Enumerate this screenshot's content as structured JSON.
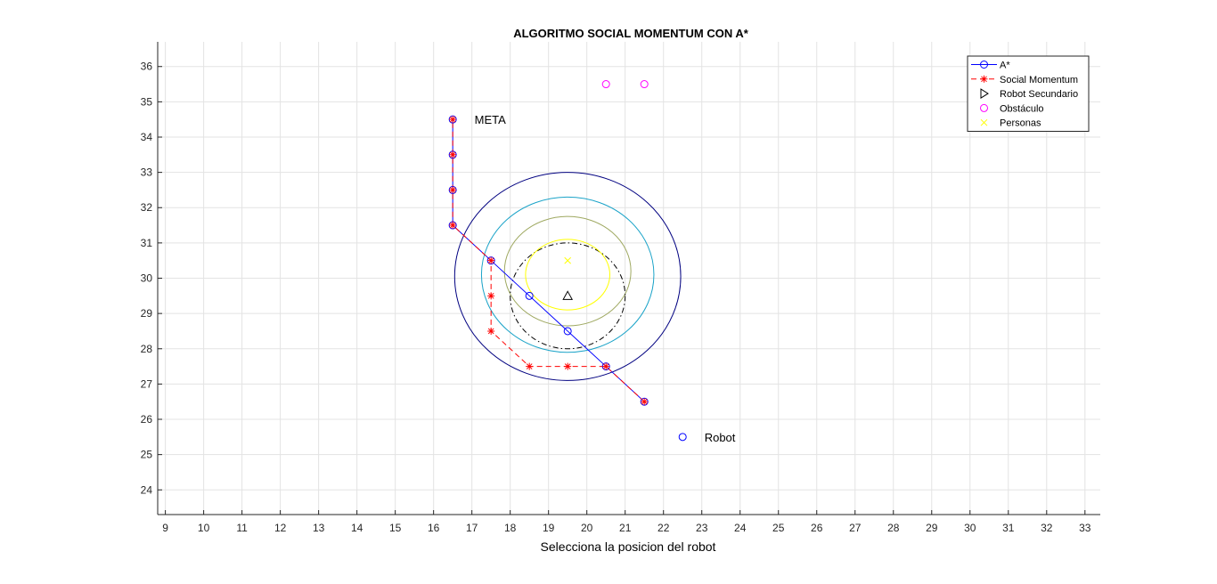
{
  "chart_data": {
    "type": "scatter",
    "title": "ALGORITMO SOCIAL MOMENTUM CON A*",
    "xlabel": "Selecciona la posicion del robot",
    "ylabel": "",
    "xlim": [
      8.8,
      33.4
    ],
    "ylim": [
      23.3,
      36.7
    ],
    "xticks": [
      9,
      10,
      11,
      12,
      13,
      14,
      15,
      16,
      17,
      18,
      19,
      20,
      21,
      22,
      23,
      24,
      25,
      26,
      27,
      28,
      29,
      30,
      31,
      32,
      33
    ],
    "yticks": [
      24,
      25,
      26,
      27,
      28,
      29,
      30,
      31,
      32,
      33,
      34,
      35,
      36
    ],
    "grid": true,
    "legend_position": "top-right",
    "series": [
      {
        "name": "A*",
        "marker": "circle",
        "line": "solid",
        "color": "#0000ff",
        "x": [
          21.5,
          20.5,
          19.5,
          18.5,
          17.5,
          16.5,
          16.5,
          16.5,
          16.5
        ],
        "y": [
          26.5,
          27.5,
          28.5,
          29.5,
          30.5,
          31.5,
          32.5,
          33.5,
          34.5
        ]
      },
      {
        "name": "Social Momentum",
        "marker": "star",
        "line": "dashed",
        "color": "#ff0000",
        "x": [
          21.5,
          20.5,
          19.5,
          18.5,
          17.5,
          17.5,
          17.5,
          16.5,
          16.5,
          16.5,
          16.5
        ],
        "y": [
          26.5,
          27.5,
          27.5,
          27.5,
          28.5,
          29.5,
          30.5,
          31.5,
          32.5,
          33.5,
          34.5
        ]
      },
      {
        "name": "Robot Secundario",
        "marker": "triangle",
        "line": "none",
        "color": "#000000",
        "x": [
          19.5
        ],
        "y": [
          29.5
        ]
      },
      {
        "name": "Obstáculo",
        "marker": "circle",
        "line": "none",
        "color": "#ff00ff",
        "x": [
          20.5,
          21.5
        ],
        "y": [
          35.5,
          35.5
        ]
      },
      {
        "name": "Personas",
        "marker": "x",
        "line": "none",
        "color": "#ffff00",
        "x": [
          19.5
        ],
        "y": [
          30.5
        ]
      }
    ],
    "extra_markers": [
      {
        "x": 22.5,
        "y": 25.5,
        "marker": "circle",
        "color": "#0000ff"
      }
    ],
    "ellipses": [
      {
        "cx": 19.5,
        "cy": 30.05,
        "rx": 2.95,
        "ry": 2.95,
        "color": "#000080",
        "style": "solid"
      },
      {
        "cx": 19.5,
        "cy": 30.1,
        "rx": 2.25,
        "ry": 2.2,
        "color": "#1aa3c8",
        "style": "solid"
      },
      {
        "cx": 19.5,
        "cy": 30.2,
        "rx": 1.65,
        "ry": 1.55,
        "color": "#9ea860",
        "style": "solid"
      },
      {
        "cx": 19.5,
        "cy": 29.5,
        "rx": 1.5,
        "ry": 1.5,
        "color": "#000000",
        "style": "dashdot"
      },
      {
        "cx": 19.5,
        "cy": 30.1,
        "rx": 1.1,
        "ry": 1.0,
        "color": "#ffff00",
        "style": "solid"
      }
    ],
    "annotations": [
      {
        "text": "META",
        "x": 17.0,
        "y": 34.5
      },
      {
        "text": "Robot",
        "x": 23.0,
        "y": 25.5
      }
    ]
  }
}
